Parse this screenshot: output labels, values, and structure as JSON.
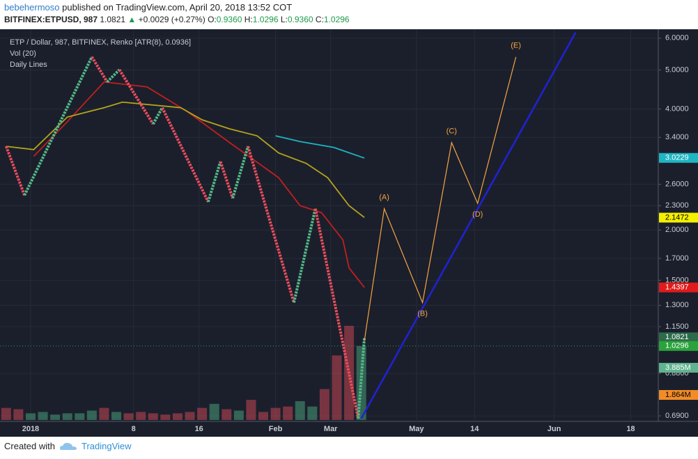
{
  "header": {
    "author": "bebehermoso",
    "published": "published on TradingView.com, April 20, 2018 13:52 COT",
    "symbol": "BITFINEX:ETPUSD, 987",
    "last": "1.0821",
    "arrow": "▲",
    "change": "+0.0029 (+0.27%)",
    "o_label": "O:",
    "o": "0.9360",
    "h_label": "H:",
    "h": "1.0296",
    "l_label": "L:",
    "l": "0.9360",
    "c_label": "C:",
    "c": "1.0296"
  },
  "footer": {
    "created": "Created with",
    "brand": "TradingView"
  },
  "chart_data": {
    "type": "renko",
    "log_scale": true,
    "grid": true,
    "legend": [
      "ETP / Dollar, 987, BITFINEX, Renko [ATR(8), 0.0936]",
      "Vol (20)",
      "Daily Lines"
    ],
    "ylim": [
      0.674,
      6.24
    ],
    "yticks": [
      {
        "value": 6,
        "label": "6.0000"
      },
      {
        "value": 5,
        "label": "5.0000"
      },
      {
        "value": 4,
        "label": "4.0000"
      },
      {
        "value": 3.4,
        "label": "3.4000"
      },
      {
        "value": 2.6,
        "label": "2.6000"
      },
      {
        "value": 2.3,
        "label": "2.3000"
      },
      {
        "value": 2,
        "label": "2.0000"
      },
      {
        "value": 1.7,
        "label": "1.7000"
      },
      {
        "value": 1.5,
        "label": "1.5000"
      },
      {
        "value": 1.3,
        "label": "1.3000"
      },
      {
        "value": 1.15,
        "label": "1.1500"
      },
      {
        "value": 0.88,
        "label": "0.8800"
      },
      {
        "value": 0.69,
        "label": "0.6900"
      }
    ],
    "xlim": [
      0,
      215
    ],
    "xticks": [
      {
        "value": 10,
        "label": "2018"
      },
      {
        "value": 43.6,
        "label": "8"
      },
      {
        "value": 65,
        "label": "16"
      },
      {
        "value": 90,
        "label": "Feb"
      },
      {
        "value": 108,
        "label": "Mar"
      },
      {
        "value": 136,
        "label": "May"
      },
      {
        "value": 155,
        "label": "14"
      },
      {
        "value": 181,
        "label": "Jun"
      },
      {
        "value": 206,
        "label": "18"
      }
    ],
    "bricks": {
      "up_color": "#53b987",
      "down_color": "#eb4d5c",
      "x": [
        2,
        8,
        30,
        35,
        39,
        50,
        53,
        68,
        72,
        76,
        81,
        96,
        103,
        117,
        119
      ],
      "values": [
        3.23,
        2.44,
        5.39,
        4.67,
        5.01,
        3.67,
        4.03,
        2.35,
        2.96,
        2.4,
        3.23,
        1.32,
        2.26,
        0.68,
        1.08
      ]
    },
    "lines": [
      {
        "color": "#c41f1f",
        "x": [
          11,
          22,
          34,
          48,
          61,
          75,
          91,
          98,
          105,
          112,
          114,
          119
        ],
        "values": [
          3.05,
          3.72,
          4.67,
          4.54,
          3.95,
          3.3,
          2.7,
          2.3,
          2.21,
          1.89,
          1.61,
          1.44
        ]
      },
      {
        "color": "#b3a51c",
        "x": [
          2,
          11,
          22,
          34,
          40,
          59,
          66,
          75,
          84,
          91,
          100,
          107,
          114,
          119
        ],
        "values": [
          3.23,
          3.17,
          3.82,
          4.03,
          4.16,
          4.03,
          3.76,
          3.57,
          3.43,
          3.11,
          2.93,
          2.7,
          2.3,
          2.15
        ]
      },
      {
        "color": "#1fb5c2",
        "x": [
          90,
          98,
          109,
          119
        ],
        "values": [
          3.43,
          3.32,
          3.21,
          3.02
        ]
      }
    ],
    "waves": {
      "color": "#f7a541",
      "labels": [
        null,
        "(A)",
        "(B)",
        "(C)",
        "(D)",
        "(E)"
      ],
      "x": [
        119,
        125.5,
        138,
        147.5,
        156,
        168.5
      ],
      "values": [
        1.06,
        2.26,
        1.32,
        3.3,
        2.33,
        5.39
      ]
    },
    "trendline": {
      "color": "#1f22d6",
      "x": [
        118,
        188
      ],
      "values": [
        0.68,
        6.2
      ]
    },
    "volume": {
      "vlim": [
        0,
        28900000
      ],
      "up_color": "#53b987",
      "down_color": "#eb4d5c",
      "x": [
        2,
        6,
        10,
        14,
        18,
        22,
        26,
        30,
        34,
        38,
        42,
        46,
        50,
        54,
        58,
        62,
        66,
        70,
        74,
        78,
        82,
        86,
        90,
        94,
        98,
        102,
        106,
        110,
        114,
        118
      ],
      "values": [
        900000,
        800000,
        500000,
        600000,
        400000,
        500000,
        500000,
        700000,
        900000,
        600000,
        500000,
        600000,
        500000,
        400000,
        500000,
        600000,
        900000,
        1200000,
        800000,
        700000,
        1500000,
        600000,
        900000,
        1000000,
        1400000,
        1000000,
        2300000,
        4800000,
        7000000,
        5500000
      ]
    },
    "price_labels": [
      {
        "value": 3.0229,
        "label": "3.0229",
        "color": "#1fb5c2",
        "text_color": "#ffffff"
      },
      {
        "value": 2.1472,
        "label": "2.1472",
        "color": "#f4f000",
        "text_color": "#000000"
      },
      {
        "value": 1.4397,
        "label": "1.4397",
        "color": "#e01b1b",
        "text_color": "#ffffff"
      },
      {
        "value": 1.0821,
        "label": "1.0821",
        "color": "#2e6b4a",
        "text_color": "#ffffff"
      },
      {
        "value": 1.0296,
        "label": "1.0296",
        "color": "#2aa33c",
        "text_color": "#ffffff",
        "line": true
      },
      {
        "value": 3885000,
        "label": "3.885M",
        "color": "#5fb38f",
        "text_color": "#ffffff",
        "axis": "volume"
      },
      {
        "value": 1864000,
        "label": "1.864M",
        "color": "#f28c28",
        "text_color": "#000000",
        "axis": "volume"
      }
    ]
  }
}
